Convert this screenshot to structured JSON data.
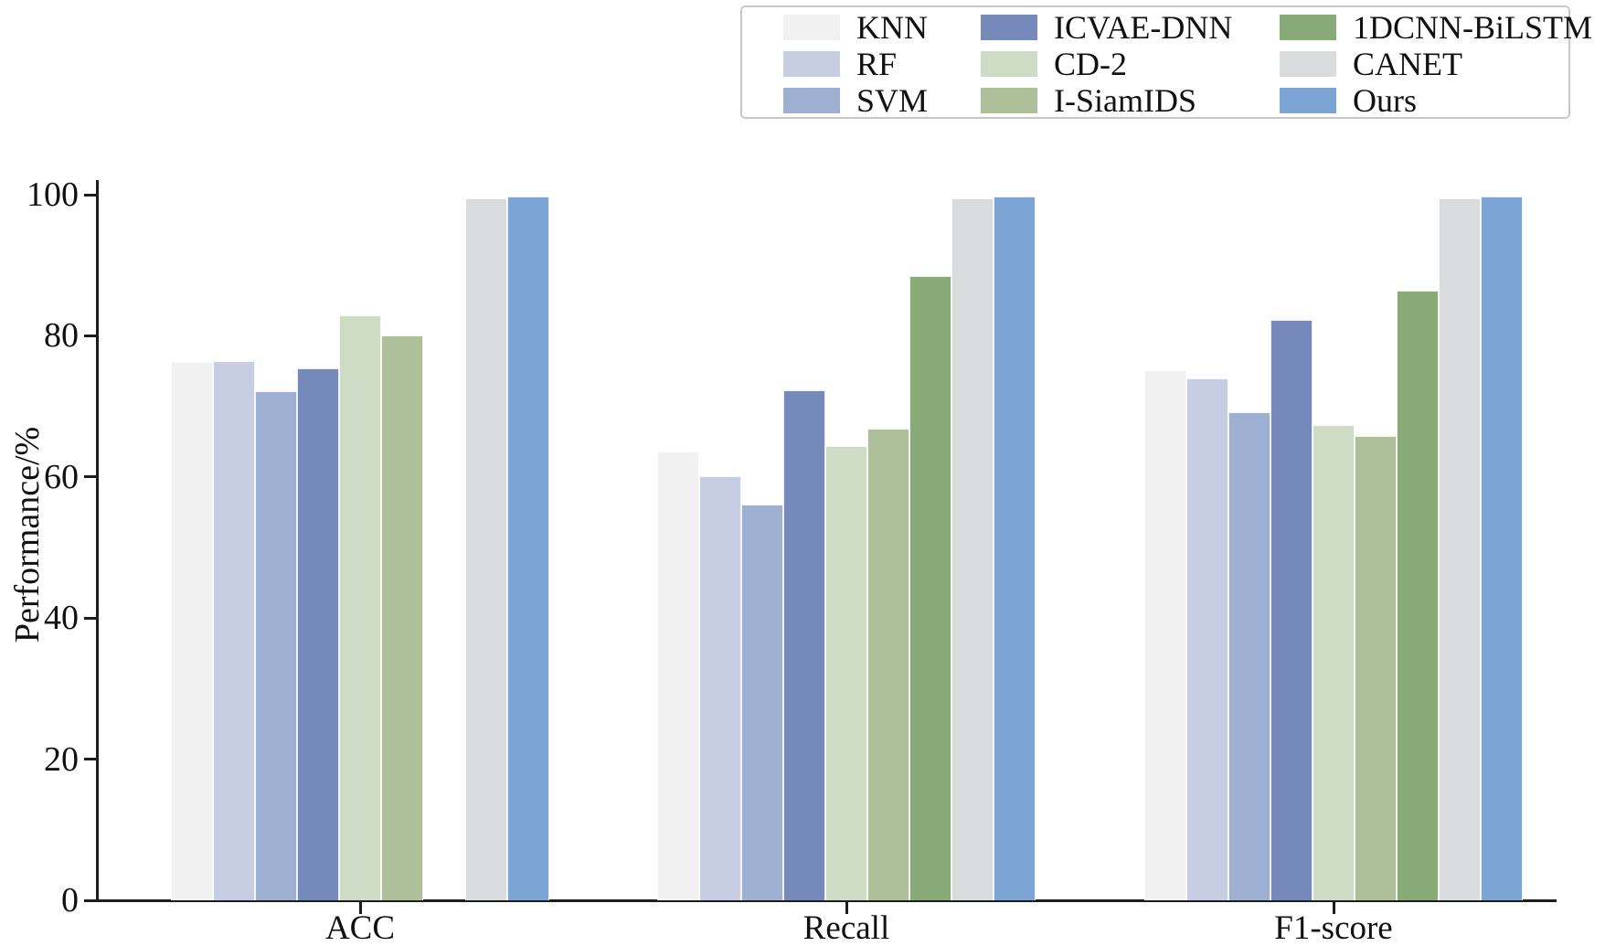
{
  "chart_data": {
    "type": "bar",
    "title": "",
    "xlabel": "",
    "ylabel": "Performance/%",
    "categories": [
      "ACC",
      "Recall",
      "F1-score"
    ],
    "ylim": [
      0,
      100
    ],
    "yticks": [
      0,
      20,
      40,
      60,
      80,
      100
    ],
    "grid": false,
    "legend_position": "top-center, 3 columns",
    "bar_note": "values are [ACC, Recall, F1-score]; null = bar absent in that group",
    "series": [
      {
        "name": "KNN",
        "color": "#f1f1f2",
        "values": [
          76.3,
          63.6,
          75.1
        ]
      },
      {
        "name": "RF",
        "color": "#c7cee3",
        "values": [
          76.4,
          60.1,
          74.0
        ]
      },
      {
        "name": "SVM",
        "color": "#9db0d1",
        "values": [
          72.1,
          56.1,
          69.2
        ]
      },
      {
        "name": "ICVAE-DNN",
        "color": "#7589bb",
        "values": [
          75.4,
          72.3,
          82.3
        ]
      },
      {
        "name": "CD-2",
        "color": "#cfdcc5",
        "values": [
          82.9,
          64.4,
          67.4
        ]
      },
      {
        "name": "I-SiamIDS",
        "color": "#adc099",
        "values": [
          80.0,
          66.8,
          65.8
        ]
      },
      {
        "name": "1DCNN-BiLSTM",
        "color": "#87aa76",
        "values": [
          null,
          88.5,
          86.4
        ]
      },
      {
        "name": "CANET",
        "color": "#d9dbdd",
        "values": [
          99.5,
          99.5,
          99.5
        ]
      },
      {
        "name": "Ours",
        "color": "#7ca4d4",
        "values": [
          99.8,
          99.8,
          99.8
        ]
      }
    ]
  }
}
